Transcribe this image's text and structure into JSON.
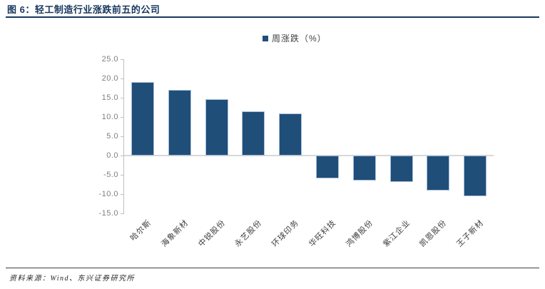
{
  "page": {
    "title": "图 6：轻工制造行业涨跌前五的公司"
  },
  "legend": {
    "label": "周涨跌（%）"
  },
  "chart_data": {
    "type": "bar",
    "title": "轻工制造行业涨跌前五的公司",
    "categories": [
      "哈尔斯",
      "海象新材",
      "中锐股份",
      "永艺股份",
      "环球印务",
      "华旺科技",
      "鸿博股份",
      "紫江企业",
      "凯恩股份",
      "王子新材"
    ],
    "values": [
      19.0,
      17.1,
      14.6,
      11.4,
      11.0,
      -5.9,
      -6.5,
      -6.9,
      -9.0,
      -10.5
    ],
    "series_name": "周涨跌（%）",
    "xlabel": "",
    "ylabel": "",
    "ylim": [
      -15,
      25
    ],
    "ytick_interval": 5,
    "ytick_labels": [
      "25.0",
      "20.0",
      "15.0",
      "10.0",
      "5.0",
      "0.0",
      "-5.0",
      "-10.0",
      "-15.0"
    ],
    "legend_position": "top-center",
    "grid": false
  },
  "footer": {
    "source": "资料来源：Wind、东兴证券研究所"
  },
  "colors": {
    "bar_fill": "#1F4E79",
    "bar_border": "#A7BDD9",
    "title_text": "#17375E",
    "axis_line": "#BFBFBF",
    "zero_line": "#D8D8D8",
    "y_label": "#7F7F7F",
    "x_label": "#404040"
  }
}
